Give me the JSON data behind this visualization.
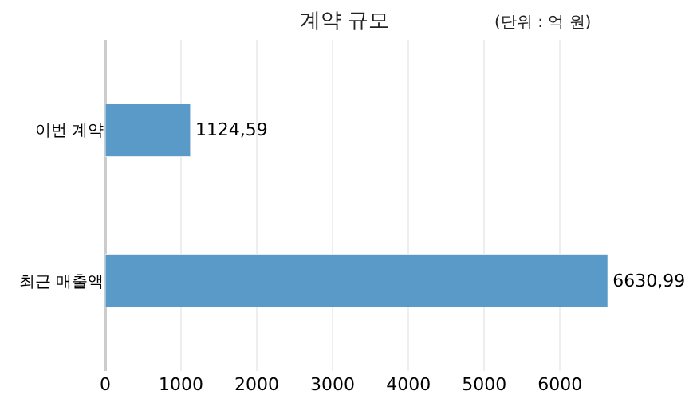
{
  "chart_data": {
    "type": "bar",
    "orientation": "horizontal",
    "title": "계약 규모",
    "annotations": [
      "(단위 : 억 원)"
    ],
    "categories": [
      "이번 계약",
      "최근 매출액"
    ],
    "values": [
      1124.59,
      6630.99
    ],
    "value_labels": [
      "1124,59",
      "6630,99"
    ],
    "color": "#5a9ac8",
    "xlim": [
      0,
      6650
    ],
    "xticks": [
      0,
      1000,
      2000,
      3000,
      4000,
      5000,
      6000
    ],
    "grid": "x",
    "legend": false
  }
}
